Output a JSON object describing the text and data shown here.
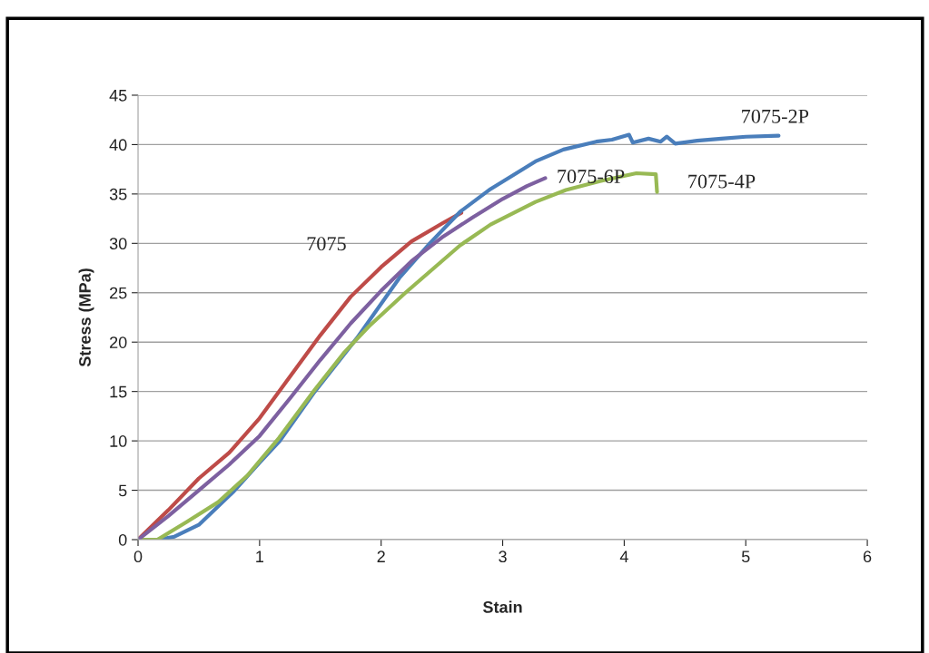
{
  "chart_data": {
    "type": "line",
    "xlabel": "Stain",
    "ylabel": "Stress (MPa)",
    "xlim": [
      0,
      6
    ],
    "xticks": [
      0,
      1,
      2,
      3,
      4,
      5,
      6
    ],
    "ylim": [
      0,
      45
    ],
    "yticks": [
      0,
      5,
      10,
      15,
      20,
      25,
      30,
      35,
      40,
      45
    ],
    "grid": "y",
    "legend": false,
    "marker": "none",
    "line_style": "solid",
    "series": [
      {
        "name": "7075",
        "color": "#be4b48",
        "x": [
          0,
          0.25,
          0.5,
          0.75,
          1.0,
          1.25,
          1.5,
          1.75,
          2.0,
          2.25,
          2.5,
          2.66
        ],
        "values": [
          0,
          3,
          6.2,
          8.8,
          12.3,
          16.5,
          20.7,
          24.6,
          27.6,
          30.2,
          32.0,
          33.1
        ]
      },
      {
        "name": "7075-2P",
        "color": "#4a7ebb",
        "x": [
          0,
          0.16,
          0.3,
          0.5,
          0.78,
          1.0,
          1.16,
          1.455,
          1.8,
          2.15,
          2.4,
          2.65,
          2.9,
          3.27,
          3.5,
          3.77,
          3.9,
          4.04,
          4.07,
          4.2,
          4.3,
          4.35,
          4.42,
          4.6,
          4.8,
          5.0,
          5.27
        ],
        "values": [
          0,
          0,
          0.3,
          1.5,
          4.8,
          7.8,
          9.9,
          15,
          20.4,
          26.5,
          30,
          33.2,
          35.5,
          38.3,
          39.5,
          40.3,
          40.5,
          41.0,
          40.2,
          40.6,
          40.3,
          40.8,
          40.1,
          40.4,
          40.6,
          40.8,
          40.9
        ]
      },
      {
        "name": "7075-4P",
        "color": "#98b954",
        "x": [
          0,
          0.16,
          0.4,
          0.66,
          0.9,
          1.16,
          1.455,
          1.7,
          1.9,
          2.2,
          2.65,
          2.9,
          3.27,
          3.52,
          3.8,
          4.1,
          4.26,
          4.27
        ],
        "values": [
          0,
          0,
          1.8,
          3.8,
          6.5,
          10.3,
          15.2,
          19,
          21.6,
          25,
          29.8,
          31.9,
          34.2,
          35.4,
          36.3,
          37.1,
          37.0,
          35.2
        ]
      },
      {
        "name": "7075-6P",
        "color": "#7d60a0",
        "x": [
          0,
          0.25,
          0.5,
          0.75,
          1.0,
          1.25,
          1.5,
          1.75,
          2.0,
          2.25,
          2.5,
          2.75,
          3.0,
          3.2,
          3.35
        ],
        "values": [
          0,
          2.4,
          5,
          7.6,
          10.5,
          14.3,
          18.2,
          21.9,
          25.2,
          28.2,
          30.6,
          32.6,
          34.5,
          35.8,
          36.6
        ]
      }
    ]
  }
}
